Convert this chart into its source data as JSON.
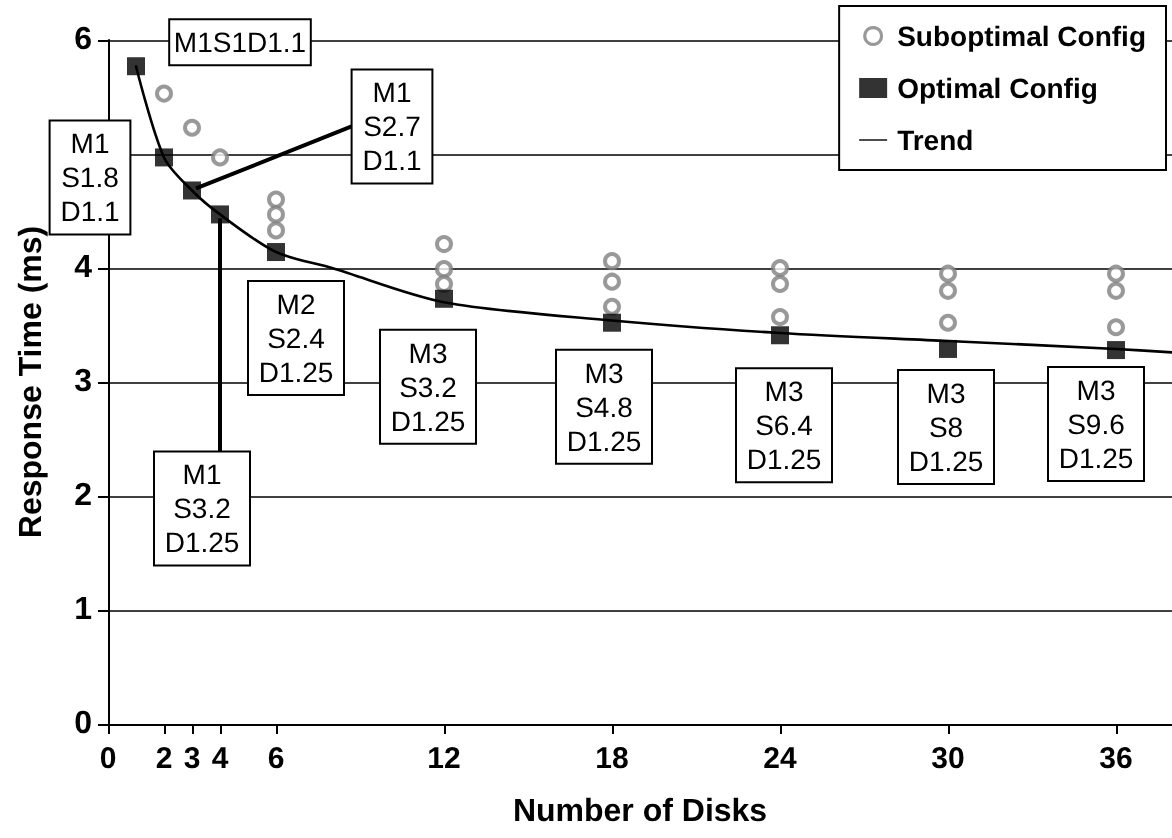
{
  "chart_data": {
    "type": "scatter",
    "xlabel": "Number of Disks",
    "ylabel": "Response Time (ms)",
    "xlim": [
      0,
      38
    ],
    "xticks": [
      0,
      2,
      3,
      4,
      6,
      12,
      18,
      24,
      30,
      36
    ],
    "ylim": [
      0,
      6
    ],
    "yticks": [
      0,
      1,
      2,
      3,
      4,
      {
        "value": 5,
        "label": null
      },
      6
    ],
    "grid": "y",
    "legend": "top right",
    "series": [
      {
        "name": "Suboptimal Config",
        "marker": "circle",
        "color": "#808080",
        "x": [
          2,
          3,
          4,
          6,
          6,
          6,
          12,
          12,
          12,
          18,
          18,
          18,
          24,
          24,
          24,
          30,
          30,
          30,
          36,
          36,
          36
        ],
        "values": [
          5.53,
          5.23,
          4.97,
          4.6,
          4.47,
          4.33,
          4.21,
          3.99,
          3.86,
          4.06,
          3.88,
          3.66,
          4.0,
          3.86,
          3.57,
          3.95,
          3.8,
          3.52,
          3.95,
          3.8,
          3.48
        ]
      },
      {
        "name": "Optimal Config",
        "marker": "square",
        "color": "#000000",
        "x": [
          1,
          2,
          3,
          4,
          6,
          12,
          18,
          24,
          30,
          36
        ],
        "values": [
          5.77,
          4.97,
          4.68,
          4.47,
          4.14,
          3.73,
          3.52,
          3.41,
          3.29,
          3.28
        ]
      },
      {
        "name": "Trend",
        "type": "line",
        "marker": "none",
        "line_style": "solid",
        "color": "#000000",
        "x": [
          1,
          2,
          3,
          4,
          6,
          8,
          12,
          18,
          24,
          30,
          36,
          38
        ],
        "values": [
          5.77,
          4.97,
          4.68,
          4.47,
          4.14,
          4.0,
          3.7,
          3.54,
          3.43,
          3.36,
          3.29,
          3.26
        ]
      }
    ],
    "annotations": [
      {
        "text": "M1S1D1.1",
        "x": 1,
        "y": 5.77
      },
      {
        "text": "M1\nS1.8\nD1.1",
        "x": 2,
        "y": 4.97
      },
      {
        "text": "M1\nS2.7\nD1.1",
        "x": 3,
        "y": 4.68
      },
      {
        "text": "M1\nS3.2\nD1.25",
        "x": 4,
        "y": 4.47
      },
      {
        "text": "M2\nS2.4\nD1.25",
        "x": 6,
        "y": 4.14
      },
      {
        "text": "M3\nS3.2\nD1.25",
        "x": 12,
        "y": 3.73
      },
      {
        "text": "M3\nS4.8\nD1.25",
        "x": 18,
        "y": 3.52
      },
      {
        "text": "M3\nS6.4\nD1.25",
        "x": 24,
        "y": 3.41
      },
      {
        "text": "M3\nS8\nD1.25",
        "x": 30,
        "y": 3.29
      },
      {
        "text": "M3\nS9.6\nD1.25",
        "x": 36,
        "y": 3.28
      }
    ]
  }
}
